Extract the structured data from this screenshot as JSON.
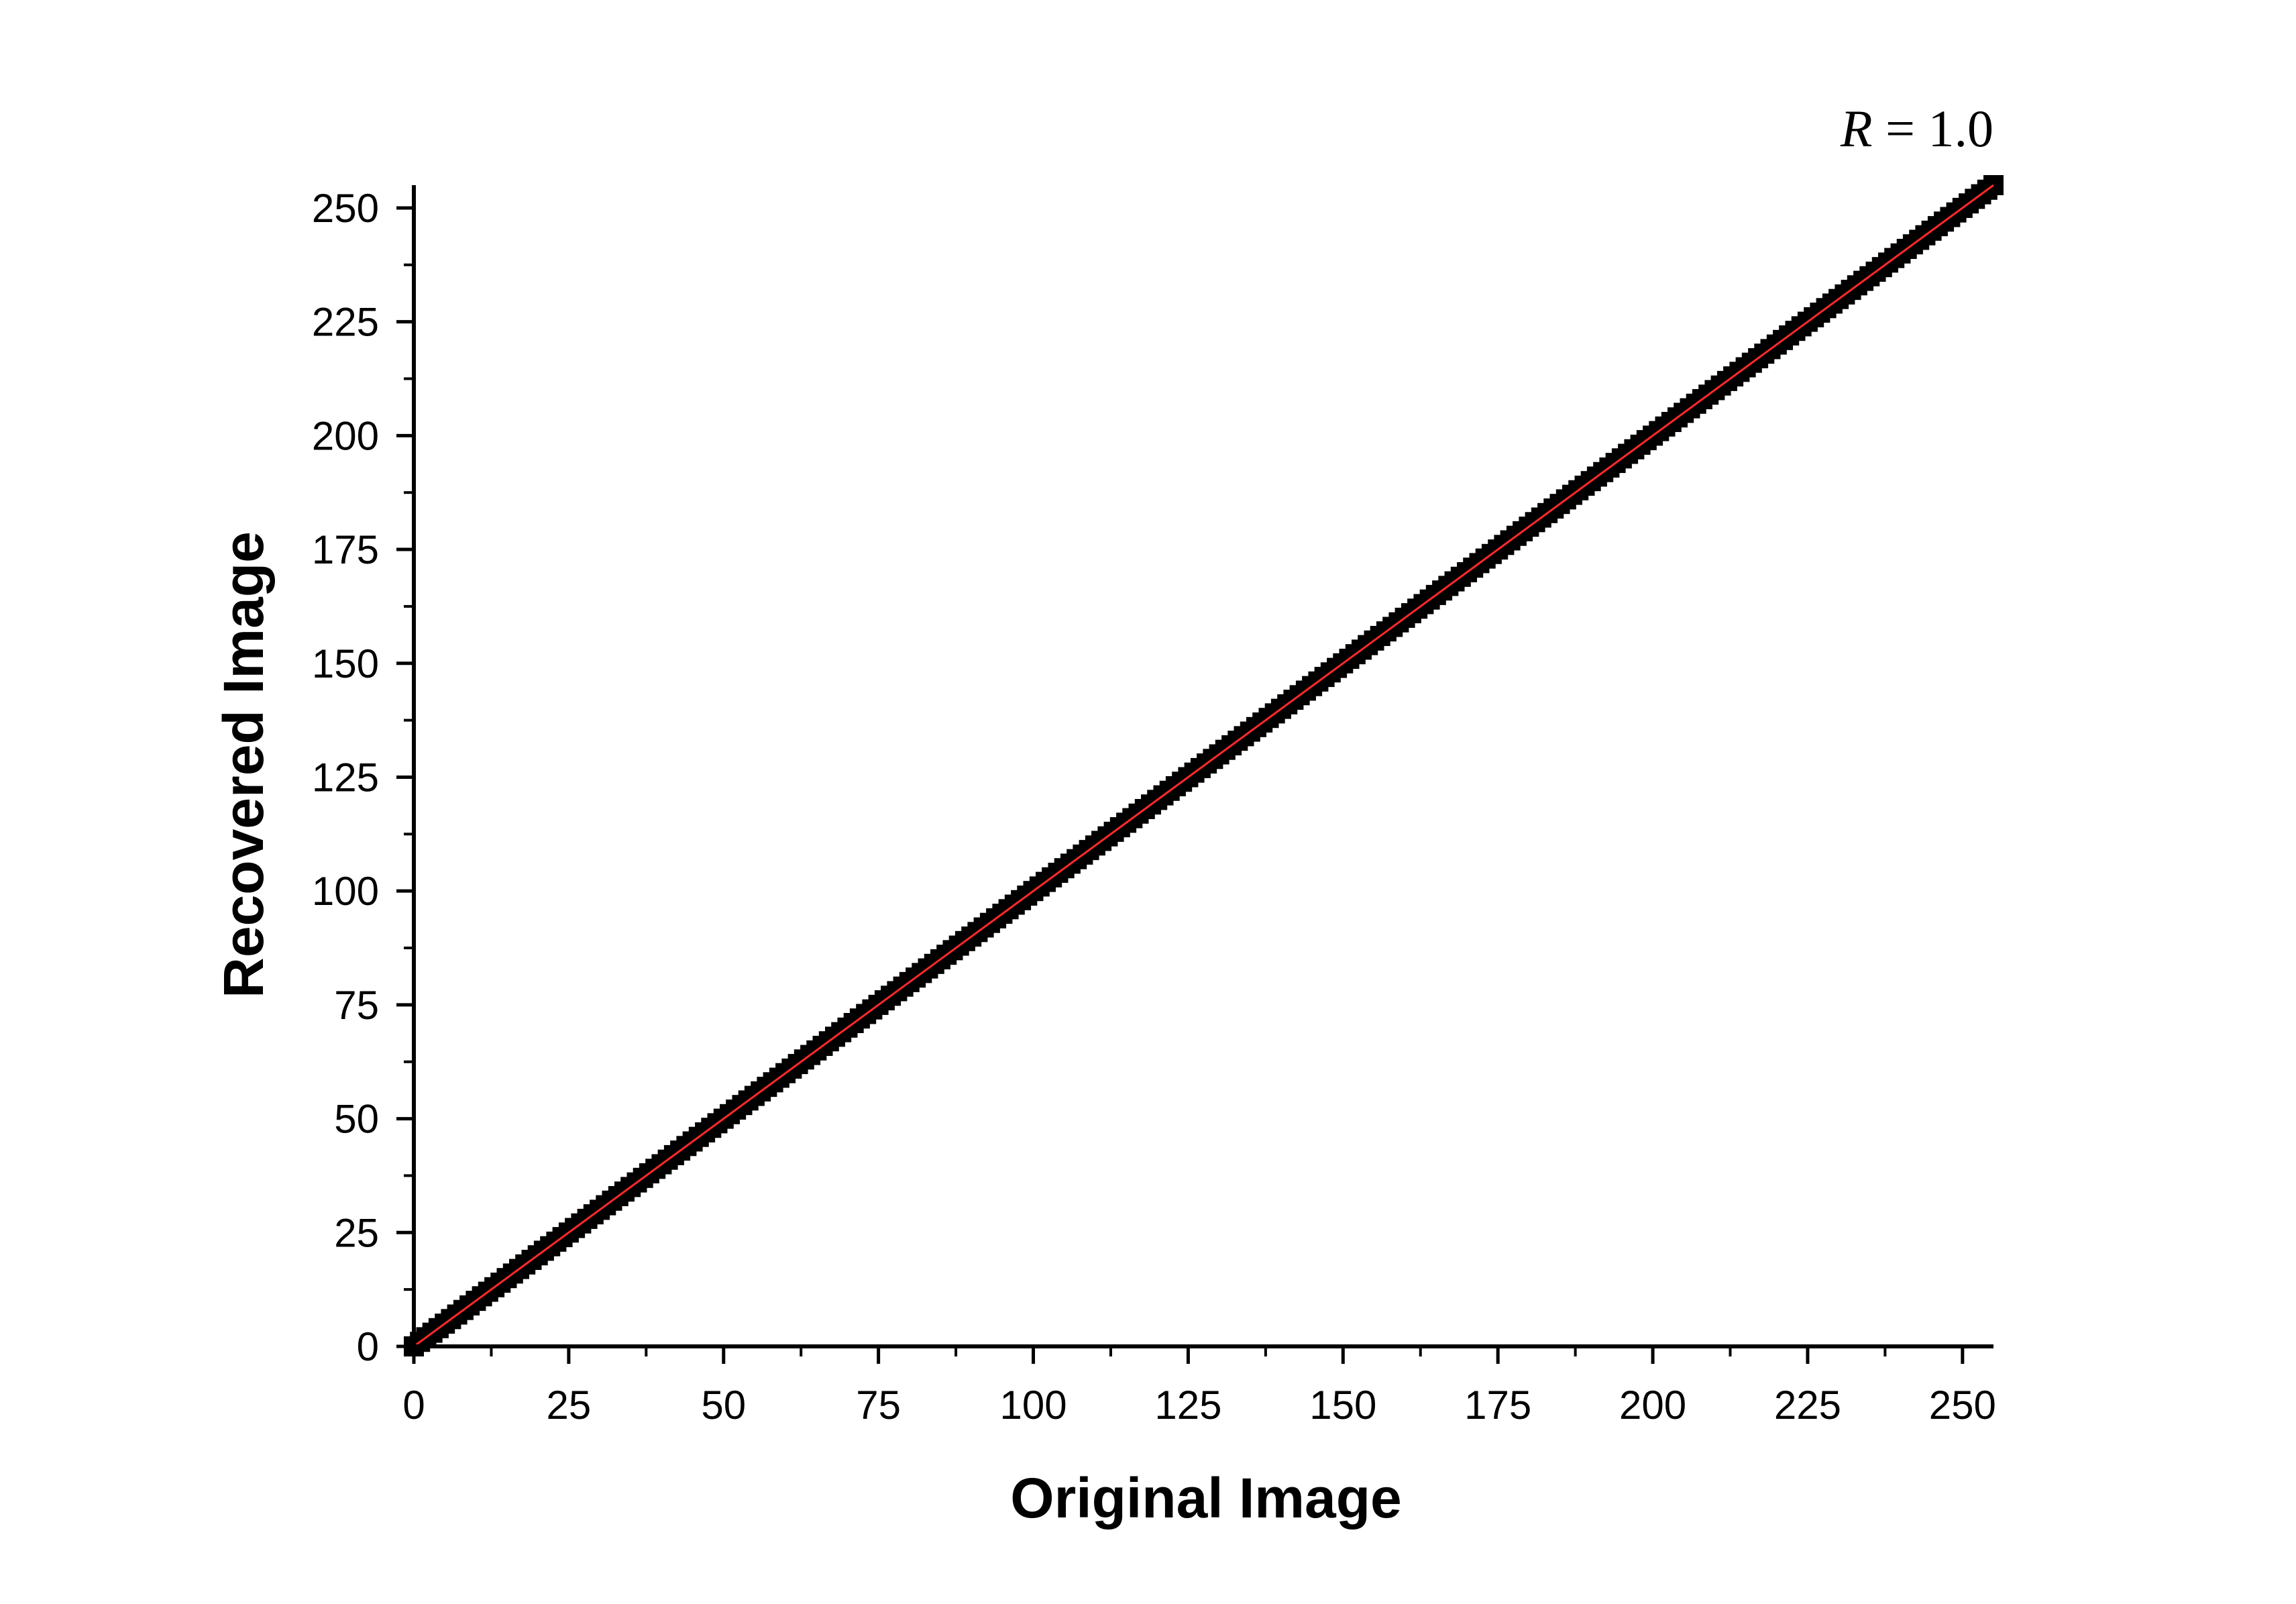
{
  "chart_data": {
    "type": "scatter",
    "title": "",
    "xlabel": "Original Image",
    "ylabel": "Recovered Image",
    "xlim": [
      0,
      255
    ],
    "ylim": [
      0,
      255
    ],
    "x_ticks": [
      "0",
      "25",
      "50",
      "75",
      "100",
      "125",
      "150",
      "175",
      "200",
      "225",
      "250"
    ],
    "y_ticks": [
      "0",
      "25",
      "50",
      "75",
      "100",
      "125",
      "150",
      "175",
      "200",
      "225",
      "250"
    ],
    "grid": false,
    "legend": "none",
    "annotation": {
      "symbol": "R",
      "equals": " = ",
      "value": "1.0"
    },
    "series": [
      {
        "kind": "scatter",
        "marker": "square",
        "color": "#000000",
        "x_range": [
          0,
          255
        ],
        "relation": "y = x",
        "x": [
          0,
          1,
          2,
          3,
          4,
          5,
          6,
          7,
          8,
          9,
          10,
          11,
          12,
          13,
          14,
          15,
          16,
          17,
          18,
          19,
          20,
          21,
          22,
          23,
          24,
          25,
          26,
          27,
          28,
          29,
          30,
          31,
          32,
          33,
          34,
          35,
          36,
          37,
          38,
          39,
          40,
          41,
          42,
          43,
          44,
          45,
          46,
          47,
          48,
          49,
          50,
          51,
          52,
          53,
          54,
          55,
          56,
          57,
          58,
          59,
          60,
          61,
          62,
          63,
          64,
          65,
          66,
          67,
          68,
          69,
          70,
          71,
          72,
          73,
          74,
          75,
          76,
          77,
          78,
          79,
          80,
          81,
          82,
          83,
          84,
          85,
          86,
          87,
          88,
          89,
          90,
          91,
          92,
          93,
          94,
          95,
          96,
          97,
          98,
          99,
          100,
          101,
          102,
          103,
          104,
          105,
          106,
          107,
          108,
          109,
          110,
          111,
          112,
          113,
          114,
          115,
          116,
          117,
          118,
          119,
          120,
          121,
          122,
          123,
          124,
          125,
          126,
          127,
          128,
          129,
          130,
          131,
          132,
          133,
          134,
          135,
          136,
          137,
          138,
          139,
          140,
          141,
          142,
          143,
          144,
          145,
          146,
          147,
          148,
          149,
          150,
          151,
          152,
          153,
          154,
          155,
          156,
          157,
          158,
          159,
          160,
          161,
          162,
          163,
          164,
          165,
          166,
          167,
          168,
          169,
          170,
          171,
          172,
          173,
          174,
          175,
          176,
          177,
          178,
          179,
          180,
          181,
          182,
          183,
          184,
          185,
          186,
          187,
          188,
          189,
          190,
          191,
          192,
          193,
          194,
          195,
          196,
          197,
          198,
          199,
          200,
          201,
          202,
          203,
          204,
          205,
          206,
          207,
          208,
          209,
          210,
          211,
          212,
          213,
          214,
          215,
          216,
          217,
          218,
          219,
          220,
          221,
          222,
          223,
          224,
          225,
          226,
          227,
          228,
          229,
          230,
          231,
          232,
          233,
          234,
          235,
          236,
          237,
          238,
          239,
          240,
          241,
          242,
          243,
          244,
          245,
          246,
          247,
          248,
          249,
          250,
          251,
          252,
          253,
          254,
          255
        ],
        "y": [
          0,
          1,
          2,
          3,
          4,
          5,
          6,
          7,
          8,
          9,
          10,
          11,
          12,
          13,
          14,
          15,
          16,
          17,
          18,
          19,
          20,
          21,
          22,
          23,
          24,
          25,
          26,
          27,
          28,
          29,
          30,
          31,
          32,
          33,
          34,
          35,
          36,
          37,
          38,
          39,
          40,
          41,
          42,
          43,
          44,
          45,
          46,
          47,
          48,
          49,
          50,
          51,
          52,
          53,
          54,
          55,
          56,
          57,
          58,
          59,
          60,
          61,
          62,
          63,
          64,
          65,
          66,
          67,
          68,
          69,
          70,
          71,
          72,
          73,
          74,
          75,
          76,
          77,
          78,
          79,
          80,
          81,
          82,
          83,
          84,
          85,
          86,
          87,
          88,
          89,
          90,
          91,
          92,
          93,
          94,
          95,
          96,
          97,
          98,
          99,
          100,
          101,
          102,
          103,
          104,
          105,
          106,
          107,
          108,
          109,
          110,
          111,
          112,
          113,
          114,
          115,
          116,
          117,
          118,
          119,
          120,
          121,
          122,
          123,
          124,
          125,
          126,
          127,
          128,
          129,
          130,
          131,
          132,
          133,
          134,
          135,
          136,
          137,
          138,
          139,
          140,
          141,
          142,
          143,
          144,
          145,
          146,
          147,
          148,
          149,
          150,
          151,
          152,
          153,
          154,
          155,
          156,
          157,
          158,
          159,
          160,
          161,
          162,
          163,
          164,
          165,
          166,
          167,
          168,
          169,
          170,
          171,
          172,
          173,
          174,
          175,
          176,
          177,
          178,
          179,
          180,
          181,
          182,
          183,
          184,
          185,
          186,
          187,
          188,
          189,
          190,
          191,
          192,
          193,
          194,
          195,
          196,
          197,
          198,
          199,
          200,
          201,
          202,
          203,
          204,
          205,
          206,
          207,
          208,
          209,
          210,
          211,
          212,
          213,
          214,
          215,
          216,
          217,
          218,
          219,
          220,
          221,
          222,
          223,
          224,
          225,
          226,
          227,
          228,
          229,
          230,
          231,
          232,
          233,
          234,
          235,
          236,
          237,
          238,
          239,
          240,
          241,
          242,
          243,
          244,
          245,
          246,
          247,
          248,
          249,
          250,
          251,
          252,
          253,
          254,
          255
        ]
      },
      {
        "kind": "line",
        "color": "#ff2a2a",
        "x": [
          0,
          255
        ],
        "y": [
          0,
          255
        ]
      }
    ]
  }
}
